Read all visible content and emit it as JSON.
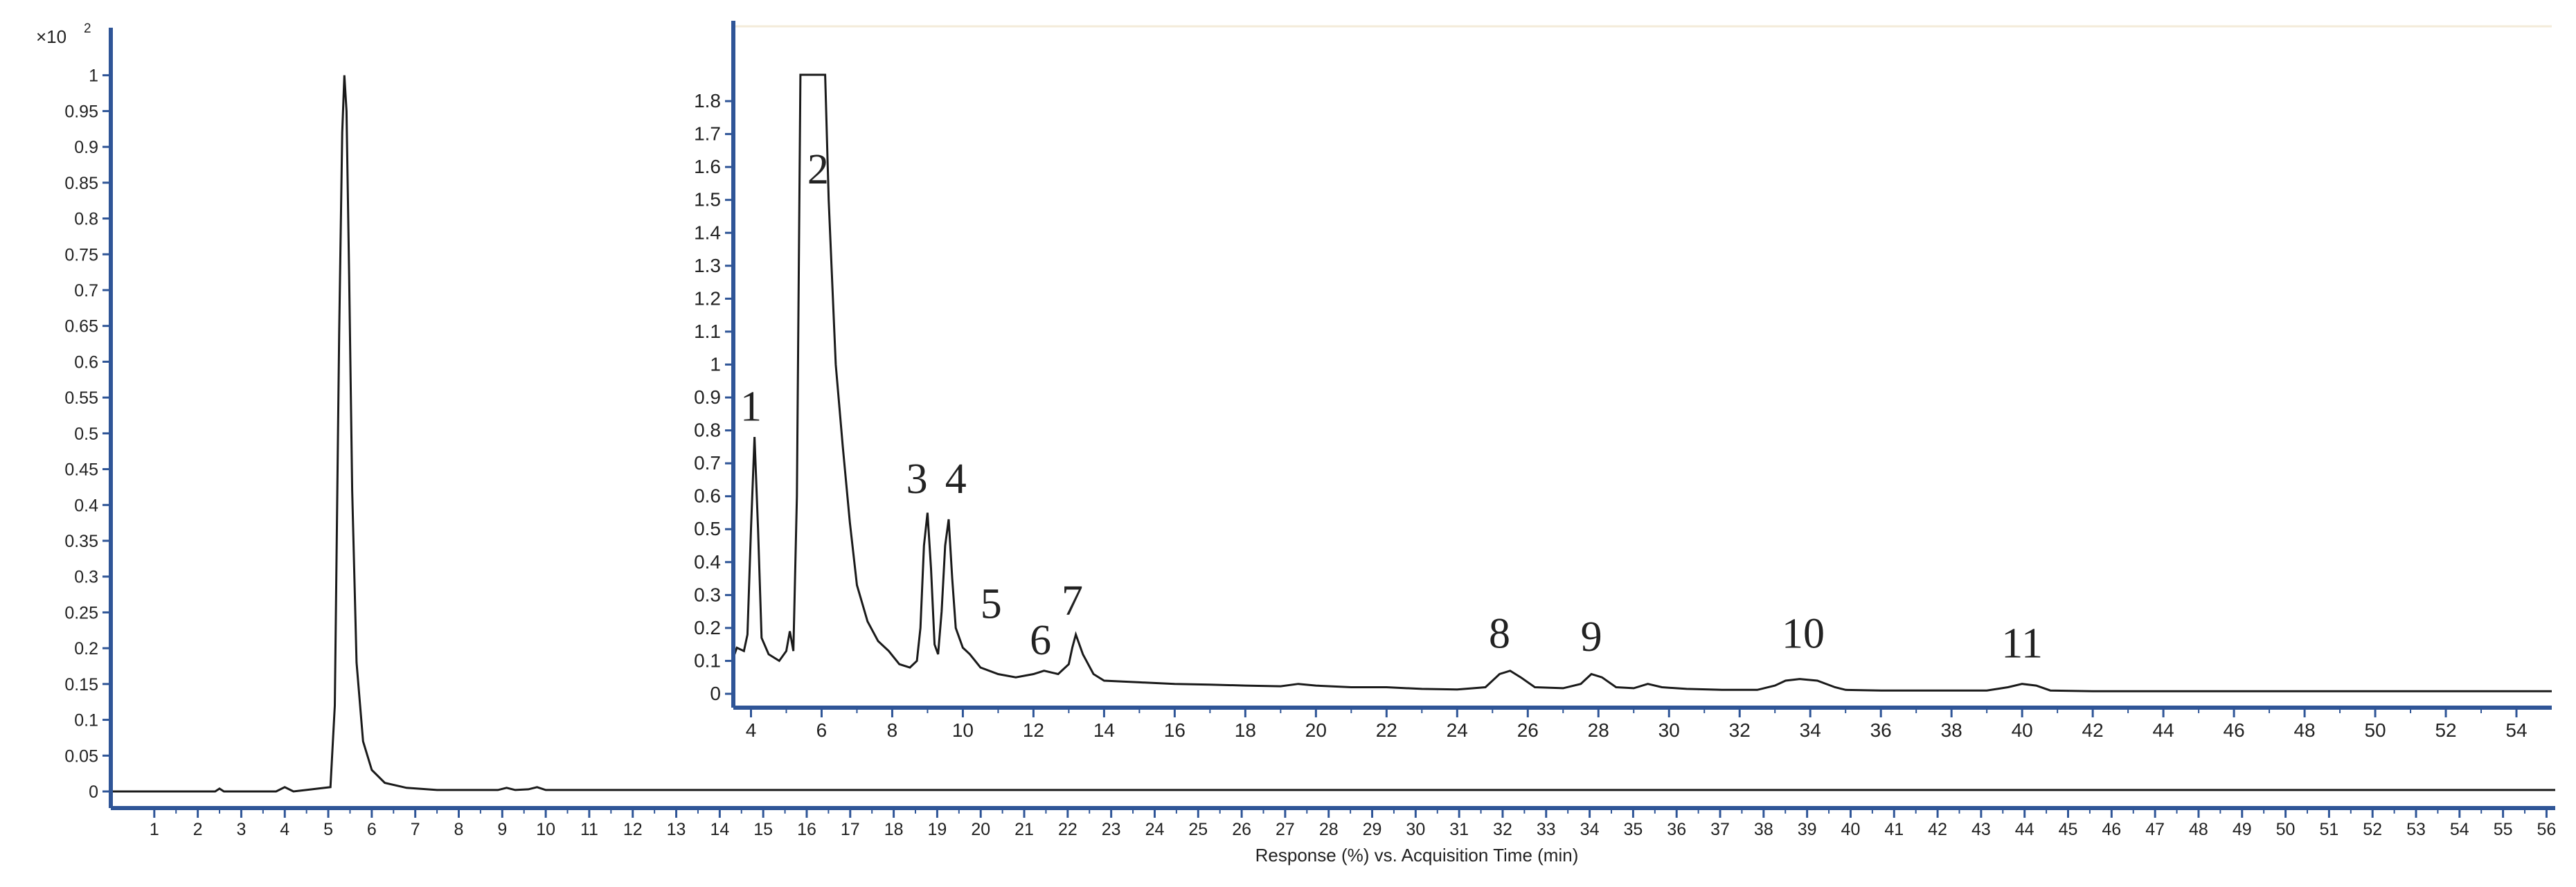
{
  "chart_data": [
    {
      "type": "line",
      "title": "",
      "xlabel": "Response (%) vs. Acquisition Time (min)",
      "ylabel": "",
      "y_multiplier_label": "×10",
      "y_multiplier_exponent": "2",
      "xlim": [
        0,
        56.2
      ],
      "ylim": [
        0,
        1.02
      ],
      "x_ticks": [
        1,
        2,
        3,
        4,
        5,
        6,
        7,
        8,
        9,
        10,
        11,
        12,
        13,
        14,
        15,
        16,
        17,
        18,
        19,
        20,
        21,
        22,
        23,
        24,
        25,
        26,
        27,
        28,
        29,
        30,
        31,
        32,
        33,
        34,
        35,
        36,
        37,
        38,
        39,
        40,
        41,
        42,
        43,
        44,
        45,
        46,
        47,
        48,
        49,
        50,
        51,
        52,
        53,
        54,
        55,
        56
      ],
      "y_ticks": [
        0,
        0.05,
        0.1,
        0.15,
        0.2,
        0.25,
        0.3,
        0.35,
        0.4,
        0.45,
        0.5,
        0.55,
        0.6,
        0.65,
        0.7,
        0.75,
        0.8,
        0.85,
        0.9,
        0.95,
        1
      ],
      "grid": false,
      "series": [
        {
          "color": "#1a1a1a",
          "x": [
            0,
            2.4,
            2.5,
            2.6,
            3.8,
            4.0,
            4.2,
            5.05,
            5.15,
            5.25,
            5.32,
            5.37,
            5.42,
            5.48,
            5.55,
            5.65,
            5.8,
            6.0,
            6.3,
            6.8,
            7.5,
            8.9,
            9.1,
            9.3,
            9.6,
            9.8,
            10.0,
            12,
            15,
            20,
            25,
            30,
            35,
            40,
            45,
            50,
            56.2
          ],
          "y": [
            0,
            0,
            0.004,
            0,
            0,
            0.006,
            0,
            0.006,
            0.12,
            0.64,
            0.92,
            1.0,
            0.95,
            0.72,
            0.42,
            0.18,
            0.07,
            0.03,
            0.012,
            0.005,
            0.002,
            0.002,
            0.005,
            0.002,
            0.003,
            0.006,
            0.002,
            0.002,
            0.002,
            0.002,
            0.002,
            0.002,
            0.002,
            0.002,
            0.002,
            0.002,
            0.002
          ]
        }
      ]
    },
    {
      "type": "line",
      "title": "",
      "xlabel": "",
      "ylabel": "",
      "xlim": [
        3.5,
        55
      ],
      "ylim": [
        0,
        1.88
      ],
      "x_ticks": [
        4,
        6,
        8,
        10,
        12,
        14,
        16,
        18,
        20,
        22,
        24,
        26,
        28,
        30,
        32,
        34,
        36,
        38,
        40,
        42,
        44,
        46,
        48,
        50,
        52,
        54
      ],
      "x_tick_labels": [
        "4",
        "6",
        "8",
        "10",
        "12",
        "14",
        "16",
        "18",
        "20",
        "22",
        "24",
        "26",
        "28",
        "30",
        "32",
        "34",
        "36",
        "38",
        "40",
        "42",
        "44",
        "46",
        "48",
        "50",
        "52",
        "54"
      ],
      "y_ticks": [
        0,
        0.1,
        0.2,
        0.3,
        0.4,
        0.5,
        0.6,
        0.7,
        0.8,
        0.9,
        1,
        1.1,
        1.2,
        1.3,
        1.4,
        1.5,
        1.6,
        1.7,
        1.8
      ],
      "grid": false,
      "series": [
        {
          "color": "#1a1a1a",
          "x": [
            3.5,
            3.6,
            3.8,
            3.9,
            4.0,
            4.1,
            4.2,
            4.3,
            4.5,
            4.8,
            5.0,
            5.1,
            5.2,
            5.3,
            5.4,
            5.5,
            5.7,
            5.9,
            6.0,
            6.1,
            6.2,
            6.4,
            6.6,
            6.8,
            7.0,
            7.3,
            7.6,
            7.9,
            8.2,
            8.5,
            8.7,
            8.8,
            8.9,
            9.0,
            9.1,
            9.2,
            9.3,
            9.4,
            9.5,
            9.6,
            9.7,
            9.8,
            10.0,
            10.2,
            10.5,
            11.0,
            11.5,
            12.0,
            12.3,
            12.7,
            13.0,
            13.1,
            13.2,
            13.4,
            13.7,
            14.0,
            15.0,
            16.0,
            17.0,
            18.0,
            19.0,
            19.5,
            20.0,
            21.0,
            22.0,
            23.0,
            24.0,
            24.8,
            25.2,
            25.5,
            25.8,
            26.2,
            27.0,
            27.5,
            27.8,
            28.1,
            28.5,
            29.0,
            29.4,
            29.8,
            30.5,
            31.5,
            32.5,
            33.0,
            33.3,
            33.7,
            34.2,
            34.7,
            35.0,
            36.0,
            37.0,
            38.0,
            39.0,
            39.6,
            40.0,
            40.4,
            40.8,
            42.0,
            44.0,
            46.0,
            48.0,
            50.0,
            52.0,
            54.0,
            55.0
          ],
          "y": [
            0.11,
            0.14,
            0.13,
            0.18,
            0.5,
            0.78,
            0.5,
            0.17,
            0.12,
            0.1,
            0.13,
            0.19,
            0.13,
            0.6,
            1.88,
            1.88,
            1.88,
            1.88,
            1.88,
            1.88,
            1.5,
            1.0,
            0.75,
            0.52,
            0.33,
            0.22,
            0.16,
            0.13,
            0.09,
            0.08,
            0.1,
            0.2,
            0.45,
            0.55,
            0.38,
            0.15,
            0.12,
            0.25,
            0.45,
            0.53,
            0.35,
            0.2,
            0.14,
            0.12,
            0.08,
            0.06,
            0.05,
            0.06,
            0.07,
            0.06,
            0.09,
            0.14,
            0.18,
            0.12,
            0.06,
            0.04,
            0.035,
            0.03,
            0.028,
            0.025,
            0.023,
            0.03,
            0.025,
            0.02,
            0.02,
            0.015,
            0.013,
            0.02,
            0.06,
            0.07,
            0.05,
            0.02,
            0.017,
            0.03,
            0.06,
            0.05,
            0.02,
            0.017,
            0.03,
            0.02,
            0.015,
            0.012,
            0.012,
            0.025,
            0.04,
            0.045,
            0.04,
            0.02,
            0.012,
            0.01,
            0.01,
            0.01,
            0.01,
            0.02,
            0.03,
            0.025,
            0.01,
            0.008,
            0.008,
            0.008,
            0.008,
            0.008,
            0.008,
            0.008,
            0.008
          ]
        }
      ],
      "annotations": [
        {
          "text": "1",
          "x": 4.0,
          "y": 0.83
        },
        {
          "text": "2",
          "x": 5.9,
          "y": 1.55
        },
        {
          "text": "3",
          "x": 8.7,
          "y": 0.61
        },
        {
          "text": "4",
          "x": 9.8,
          "y": 0.61
        },
        {
          "text": "5",
          "x": 10.8,
          "y": 0.23
        },
        {
          "text": "6",
          "x": 12.2,
          "y": 0.12
        },
        {
          "text": "7",
          "x": 13.1,
          "y": 0.24
        },
        {
          "text": "8",
          "x": 25.2,
          "y": 0.14
        },
        {
          "text": "9",
          "x": 27.8,
          "y": 0.13
        },
        {
          "text": "10",
          "x": 33.8,
          "y": 0.14
        },
        {
          "text": "11",
          "x": 40.0,
          "y": 0.11
        }
      ]
    }
  ]
}
